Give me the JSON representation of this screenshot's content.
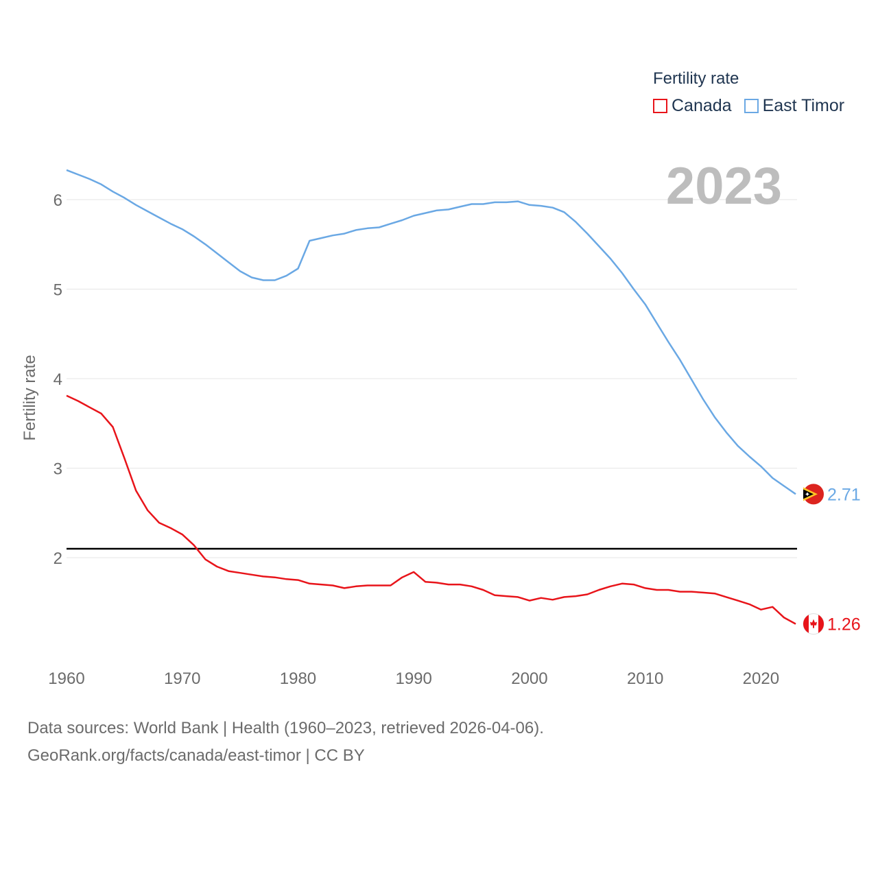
{
  "legend": {
    "title": "Fertility rate",
    "items": [
      {
        "label": "Canada",
        "color": "#e8141a"
      },
      {
        "label": "East Timor",
        "color": "#6aa8e4"
      }
    ]
  },
  "year_badge": "2023",
  "footer": {
    "line1": "Data sources: World Bank | Health (1960–2023, retrieved 2026-04-06).",
    "line2": "GeoRank.org/facts/canada/east-timor | CC BY"
  },
  "chart_data": {
    "type": "line",
    "title": "Fertility rate",
    "xlabel": "",
    "ylabel": "Fertility rate",
    "xlim": [
      1960,
      2023
    ],
    "ylim": [
      1.0,
      6.6
    ],
    "xticks": [
      1960,
      1970,
      1980,
      1990,
      2000,
      2010,
      2020
    ],
    "yticks": [
      2,
      3,
      4,
      5,
      6
    ],
    "grid": true,
    "reference_line": 2.1,
    "x": [
      1960,
      1961,
      1962,
      1963,
      1964,
      1965,
      1966,
      1967,
      1968,
      1969,
      1970,
      1971,
      1972,
      1973,
      1974,
      1975,
      1976,
      1977,
      1978,
      1979,
      1980,
      1981,
      1982,
      1983,
      1984,
      1985,
      1986,
      1987,
      1988,
      1989,
      1990,
      1991,
      1992,
      1993,
      1994,
      1995,
      1996,
      1997,
      1998,
      1999,
      2000,
      2001,
      2002,
      2003,
      2004,
      2005,
      2006,
      2007,
      2008,
      2009,
      2010,
      2011,
      2012,
      2013,
      2014,
      2015,
      2016,
      2017,
      2018,
      2019,
      2020,
      2021,
      2022,
      2023
    ],
    "series": [
      {
        "name": "Canada",
        "color": "#e8141a",
        "end_label": "1.26",
        "values": [
          3.81,
          3.75,
          3.68,
          3.61,
          3.46,
          3.11,
          2.75,
          2.53,
          2.39,
          2.33,
          2.26,
          2.14,
          1.98,
          1.9,
          1.85,
          1.83,
          1.81,
          1.79,
          1.78,
          1.76,
          1.75,
          1.71,
          1.7,
          1.69,
          1.66,
          1.68,
          1.69,
          1.69,
          1.69,
          1.78,
          1.84,
          1.73,
          1.72,
          1.7,
          1.7,
          1.68,
          1.64,
          1.58,
          1.57,
          1.56,
          1.52,
          1.55,
          1.53,
          1.56,
          1.57,
          1.59,
          1.64,
          1.68,
          1.71,
          1.7,
          1.66,
          1.64,
          1.64,
          1.62,
          1.62,
          1.61,
          1.6,
          1.56,
          1.52,
          1.48,
          1.42,
          1.45,
          1.33,
          1.26
        ]
      },
      {
        "name": "East Timor",
        "color": "#6aa8e4",
        "end_label": "2.71",
        "values": [
          6.33,
          6.28,
          6.23,
          6.17,
          6.09,
          6.02,
          5.94,
          5.87,
          5.8,
          5.73,
          5.67,
          5.59,
          5.5,
          5.4,
          5.3,
          5.2,
          5.13,
          5.1,
          5.1,
          5.15,
          5.23,
          5.54,
          5.57,
          5.6,
          5.62,
          5.66,
          5.68,
          5.69,
          5.73,
          5.77,
          5.82,
          5.85,
          5.88,
          5.89,
          5.92,
          5.95,
          5.95,
          5.97,
          5.97,
          5.98,
          5.94,
          5.93,
          5.91,
          5.86,
          5.75,
          5.62,
          5.48,
          5.34,
          5.18,
          5.0,
          4.83,
          4.62,
          4.41,
          4.21,
          3.99,
          3.77,
          3.57,
          3.4,
          3.25,
          3.13,
          3.02,
          2.89,
          2.8,
          2.71
        ]
      }
    ]
  }
}
